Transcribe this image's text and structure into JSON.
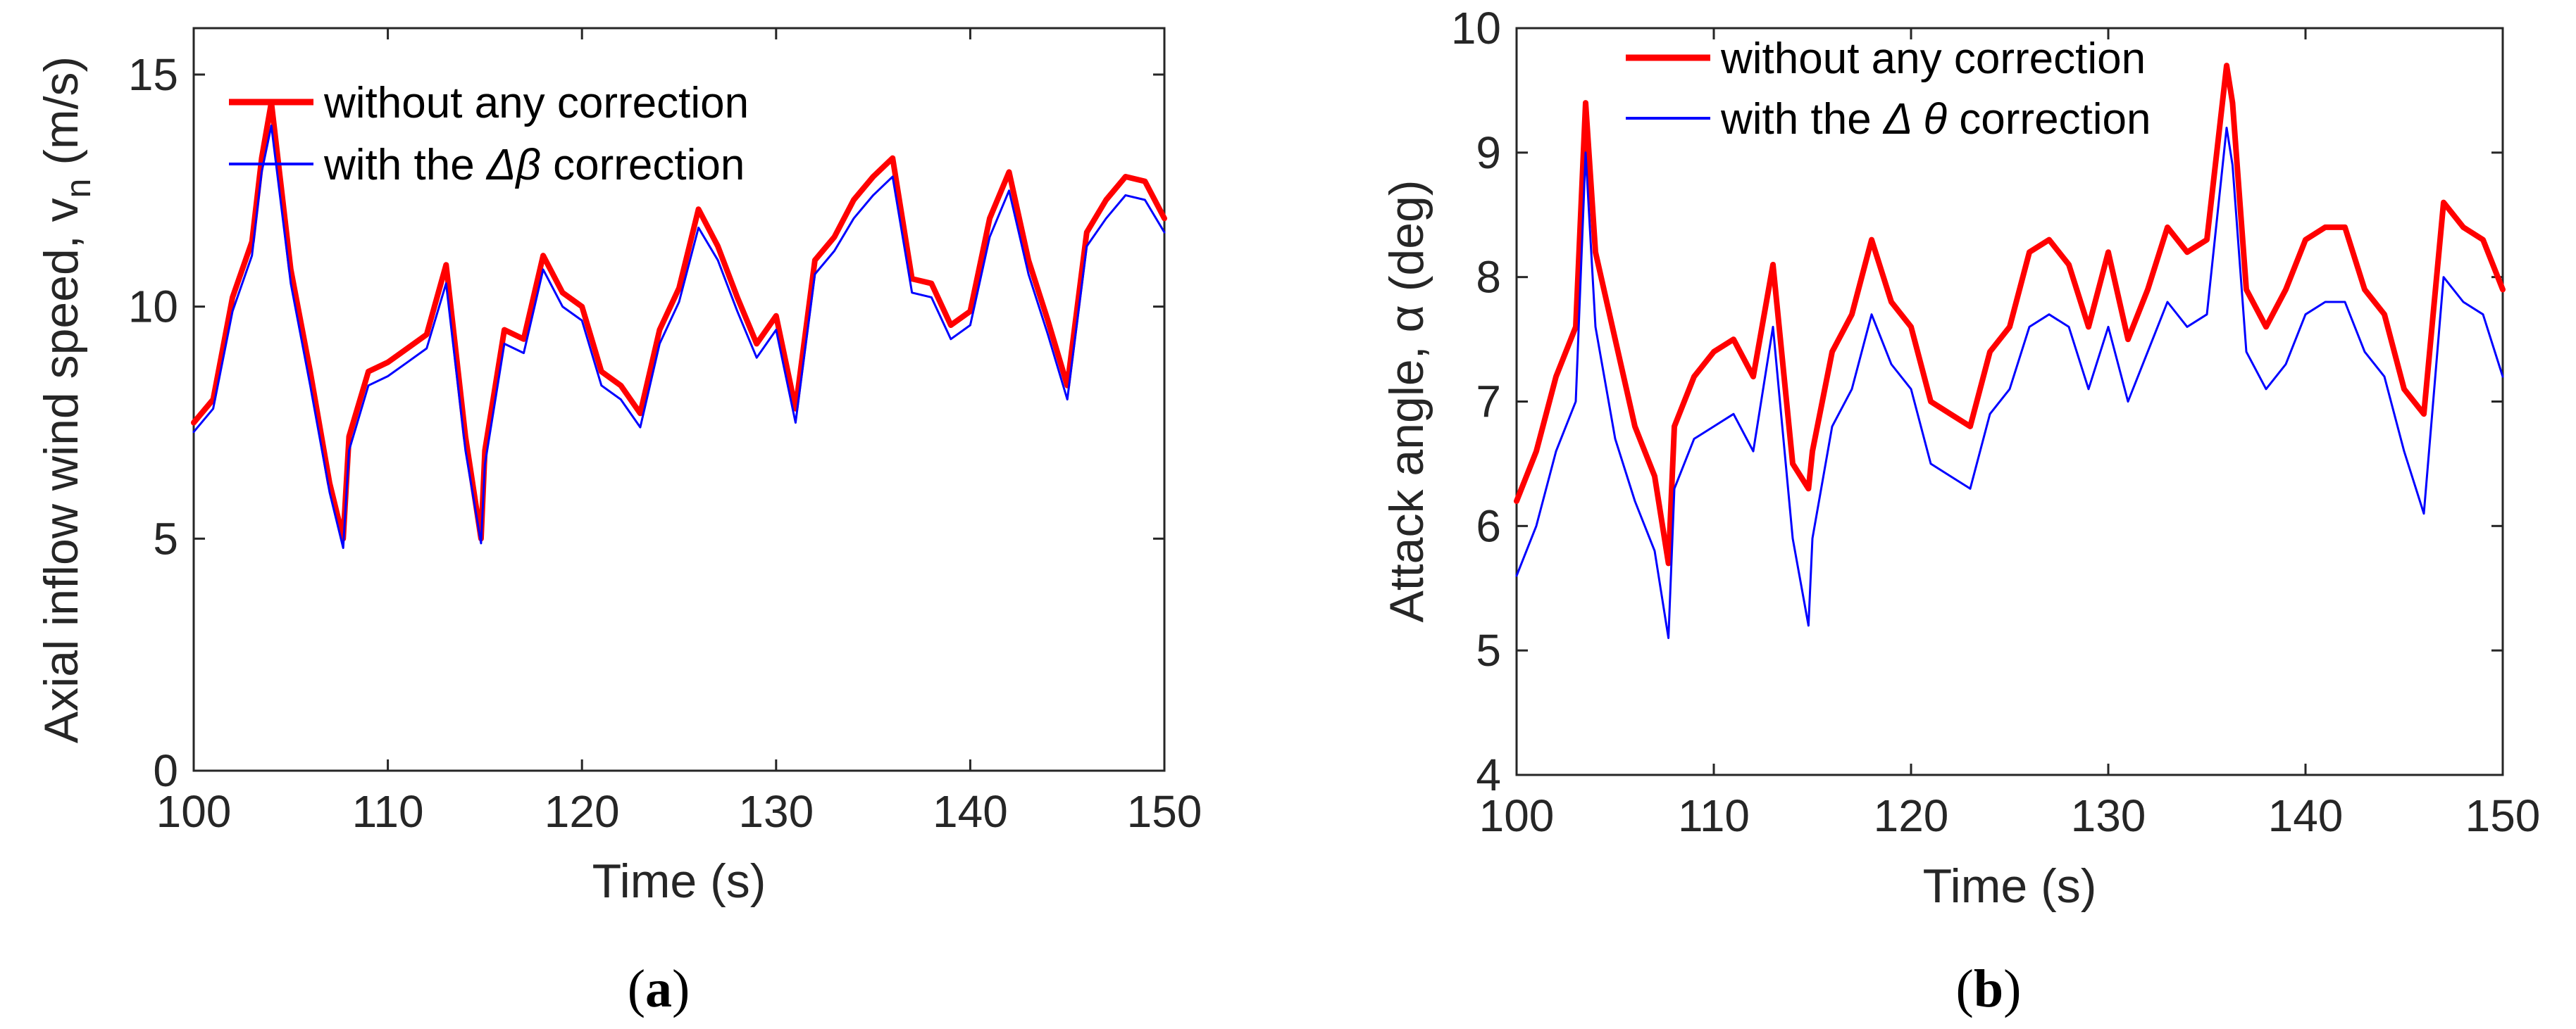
{
  "colors": {
    "red_series": "#ff0000",
    "blue_series": "#0000ff",
    "axis": "#262626"
  },
  "chart_data": [
    {
      "type": "line",
      "panel": "a",
      "title": "",
      "xlabel": "Time (s)",
      "ylabel": "Axial inflow wind speed, v",
      "ylabel_sub": "n",
      "ylabel_unit": " (m/s)",
      "xlim": [
        100,
        150
      ],
      "ylim": [
        0,
        16
      ],
      "xticks": [
        100,
        110,
        120,
        130,
        140,
        150
      ],
      "yticks": [
        0,
        5,
        10,
        15
      ],
      "legend_position": "top-left",
      "series": [
        {
          "name": "without any correction",
          "color": "#ff0000",
          "x": [
            100,
            101,
            102,
            103,
            103.5,
            104,
            105,
            106,
            107,
            107.7,
            108,
            109,
            110,
            111,
            112,
            113,
            114,
            114.8,
            115,
            116,
            117,
            118,
            119,
            120,
            121,
            122,
            123,
            124,
            125,
            126,
            127,
            128,
            129,
            130,
            131,
            132,
            133,
            134,
            135,
            136,
            137,
            138,
            139,
            140,
            141,
            142,
            143,
            144,
            145,
            146,
            147,
            148,
            149,
            150
          ],
          "values": [
            7.5,
            8.0,
            10.2,
            11.4,
            13.2,
            14.4,
            10.8,
            8.6,
            6.2,
            5.0,
            7.2,
            8.6,
            8.8,
            9.1,
            9.4,
            10.9,
            7.2,
            5.0,
            6.9,
            9.5,
            9.3,
            11.1,
            10.3,
            10.0,
            8.6,
            8.3,
            7.7,
            9.5,
            10.4,
            12.1,
            11.3,
            10.2,
            9.2,
            9.8,
            7.8,
            11.0,
            11.5,
            12.3,
            12.8,
            13.2,
            10.6,
            10.5,
            9.6,
            9.9,
            11.9,
            12.9,
            11.0,
            9.7,
            8.3,
            11.6,
            12.3,
            12.8,
            12.7,
            11.9
          ]
        },
        {
          "name": "with the Δβ correction",
          "name_prefix": "with the ",
          "name_symbol": "Δβ",
          "name_suffix": " correction",
          "color": "#0000ff",
          "x": [
            100,
            101,
            102,
            103,
            103.5,
            104,
            105,
            106,
            107,
            107.7,
            108,
            109,
            110,
            111,
            112,
            113,
            114,
            114.8,
            115,
            116,
            117,
            118,
            119,
            120,
            121,
            122,
            123,
            124,
            125,
            126,
            127,
            128,
            129,
            130,
            131,
            132,
            133,
            134,
            135,
            136,
            137,
            138,
            139,
            140,
            141,
            142,
            143,
            144,
            145,
            146,
            147,
            148,
            149,
            150
          ],
          "values": [
            7.3,
            7.8,
            9.9,
            11.1,
            12.9,
            13.9,
            10.5,
            8.3,
            6.0,
            4.8,
            6.9,
            8.3,
            8.5,
            8.8,
            9.1,
            10.5,
            6.9,
            4.9,
            6.6,
            9.2,
            9.0,
            10.8,
            10.0,
            9.7,
            8.3,
            8.0,
            7.4,
            9.2,
            10.1,
            11.7,
            11.0,
            9.9,
            8.9,
            9.5,
            7.5,
            10.7,
            11.2,
            11.9,
            12.4,
            12.8,
            10.3,
            10.2,
            9.3,
            9.6,
            11.5,
            12.5,
            10.7,
            9.4,
            8.0,
            11.3,
            11.9,
            12.4,
            12.3,
            11.6
          ]
        }
      ]
    },
    {
      "type": "line",
      "panel": "b",
      "title": "",
      "xlabel": "Time (s)",
      "ylabel": "Attack angle, α (deg)",
      "xlim": [
        100,
        150
      ],
      "ylim": [
        4,
        10
      ],
      "xticks": [
        100,
        110,
        120,
        130,
        140,
        150
      ],
      "yticks": [
        4,
        5,
        6,
        7,
        8,
        9,
        10
      ],
      "legend_position": "top-left",
      "series": [
        {
          "name": "without any correction",
          "color": "#ff0000",
          "x": [
            100,
            101,
            102,
            103,
            103.5,
            104,
            105,
            106,
            107,
            107.7,
            108,
            109,
            110,
            111,
            112,
            113,
            114,
            114.8,
            115,
            116,
            117,
            118,
            119,
            120,
            121,
            122,
            123,
            124,
            125,
            126,
            127,
            128,
            129,
            130,
            131,
            132,
            133,
            134,
            135,
            136,
            136.3,
            137,
            138,
            139,
            140,
            141,
            142,
            143,
            144,
            145,
            146,
            147,
            148,
            149,
            150
          ],
          "values": [
            6.2,
            6.6,
            7.2,
            7.6,
            9.4,
            8.2,
            7.5,
            6.8,
            6.4,
            5.7,
            6.8,
            7.2,
            7.4,
            7.5,
            7.2,
            8.1,
            6.5,
            6.3,
            6.6,
            7.4,
            7.7,
            8.3,
            7.8,
            7.6,
            7.0,
            6.9,
            6.8,
            7.4,
            7.6,
            8.2,
            8.3,
            8.1,
            7.6,
            8.2,
            7.5,
            7.9,
            8.4,
            8.2,
            8.3,
            9.7,
            9.4,
            7.9,
            7.6,
            7.9,
            8.3,
            8.4,
            8.4,
            7.9,
            7.7,
            7.1,
            6.9,
            8.6,
            8.4,
            8.3,
            7.9
          ]
        },
        {
          "name": "with the Δ θ correction",
          "name_prefix": "with the ",
          "name_symbol": "Δ θ",
          "name_suffix": " correction",
          "color": "#0000ff",
          "x": [
            100,
            101,
            102,
            103,
            103.5,
            104,
            105,
            106,
            107,
            107.7,
            108,
            109,
            110,
            111,
            112,
            113,
            114,
            114.8,
            115,
            116,
            117,
            118,
            119,
            120,
            121,
            122,
            123,
            124,
            125,
            126,
            127,
            128,
            129,
            130,
            131,
            132,
            133,
            134,
            135,
            136,
            136.3,
            137,
            138,
            139,
            140,
            141,
            142,
            143,
            144,
            145,
            146,
            147,
            148,
            149,
            150
          ],
          "values": [
            5.6,
            6.0,
            6.6,
            7.0,
            9.0,
            7.6,
            6.7,
            6.2,
            5.8,
            5.1,
            6.3,
            6.7,
            6.8,
            6.9,
            6.6,
            7.6,
            5.9,
            5.2,
            5.9,
            6.8,
            7.1,
            7.7,
            7.3,
            7.1,
            6.5,
            6.4,
            6.3,
            6.9,
            7.1,
            7.6,
            7.7,
            7.6,
            7.1,
            7.6,
            7.0,
            7.4,
            7.8,
            7.6,
            7.7,
            9.2,
            8.9,
            7.4,
            7.1,
            7.3,
            7.7,
            7.8,
            7.8,
            7.4,
            7.2,
            6.6,
            6.1,
            8.0,
            7.8,
            7.7,
            7.2
          ]
        }
      ]
    }
  ],
  "captions": {
    "a": "a",
    "b": "b",
    "open": "(",
    "close": ")"
  }
}
